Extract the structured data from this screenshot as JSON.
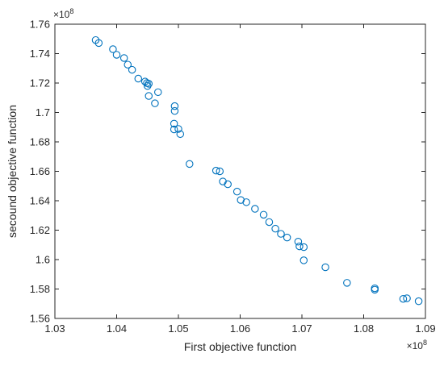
{
  "chart_data": {
    "type": "scatter",
    "title": "",
    "xlabel": "First objective function",
    "ylabel": "secound objective function",
    "x_exponent_label": "×10^8",
    "y_exponent_label": "×10^8",
    "xlim": [
      1.03,
      1.09
    ],
    "ylim": [
      1.56,
      1.76
    ],
    "x_ticks": [
      "1.03",
      "1.04",
      "1.05",
      "1.06",
      "1.07",
      "1.08",
      "1.09"
    ],
    "y_ticks": [
      "1.56",
      "1.58",
      "1.6",
      "1.62",
      "1.64",
      "1.66",
      "1.68",
      "1.7",
      "1.72",
      "1.74",
      "1.76"
    ],
    "grid": false,
    "marker_color": "#0072BD",
    "series": [
      {
        "points": [
          [
            1.0366,
            1.7492
          ],
          [
            1.0371,
            1.7472
          ],
          [
            1.0394,
            1.743
          ],
          [
            1.04,
            1.7392
          ],
          [
            1.0412,
            1.737
          ],
          [
            1.0418,
            1.7325
          ],
          [
            1.0425,
            1.729
          ],
          [
            1.0435,
            1.723
          ],
          [
            1.0446,
            1.721
          ],
          [
            1.0449,
            1.72
          ],
          [
            1.0452,
            1.7195
          ],
          [
            1.045,
            1.718
          ],
          [
            1.0452,
            1.7112
          ],
          [
            1.0467,
            1.7138
          ],
          [
            1.0462,
            1.7062
          ],
          [
            1.0494,
            1.7043
          ],
          [
            1.0494,
            1.701
          ],
          [
            1.0493,
            1.6924
          ],
          [
            1.0493,
            1.6885
          ],
          [
            1.05,
            1.6888
          ],
          [
            1.0503,
            1.6853
          ],
          [
            1.0518,
            1.665
          ],
          [
            1.0561,
            1.6605
          ],
          [
            1.0567,
            1.66
          ],
          [
            1.0572,
            1.6531
          ],
          [
            1.058,
            1.6512
          ],
          [
            1.0595,
            1.6462
          ],
          [
            1.0601,
            1.6405
          ],
          [
            1.061,
            1.639
          ],
          [
            1.0624,
            1.6345
          ],
          [
            1.0638,
            1.6305
          ],
          [
            1.0647,
            1.6255
          ],
          [
            1.0657,
            1.621
          ],
          [
            1.0666,
            1.6175
          ],
          [
            1.0676,
            1.615
          ],
          [
            1.0694,
            1.6122
          ],
          [
            1.0696,
            1.609
          ],
          [
            1.0703,
            1.6085
          ],
          [
            1.0703,
            1.5995
          ],
          [
            1.0738,
            1.5948
          ],
          [
            1.0773,
            1.5842
          ],
          [
            1.0818,
            1.5805
          ],
          [
            1.0818,
            1.5795
          ],
          [
            1.0864,
            1.5733
          ],
          [
            1.087,
            1.5737
          ],
          [
            1.0889,
            1.5717
          ]
        ]
      }
    ]
  }
}
